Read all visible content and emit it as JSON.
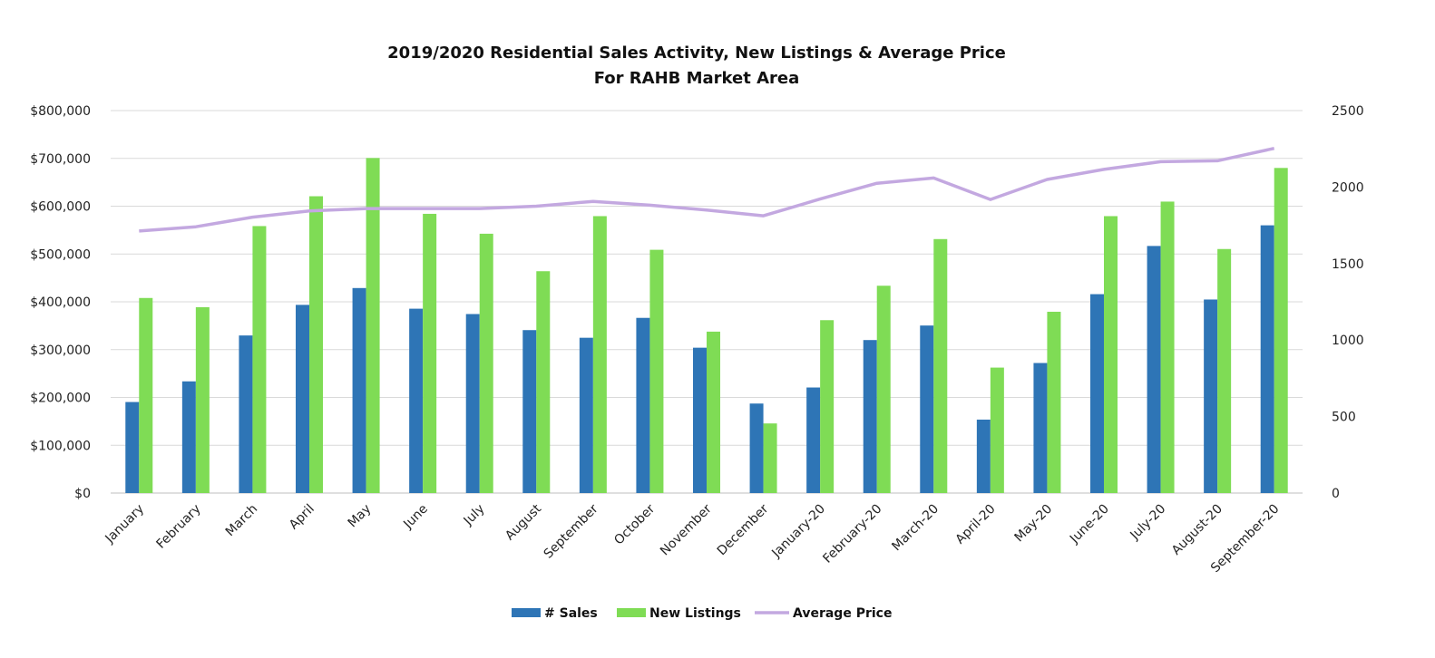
{
  "chart_data": {
    "type": "bar",
    "title": "2019/2020 Residential Sales Activity, New Listings & Average Price",
    "subtitle": "For RAHB Market Area",
    "categories": [
      "January",
      "February",
      "March",
      "April",
      "May",
      "June",
      "July",
      "August",
      "September",
      "October",
      "November",
      "December",
      "January-20",
      "February-20",
      "March-20",
      "April-20",
      "May-20",
      "June-20",
      "July-20",
      "August-20",
      "September-20"
    ],
    "series": [
      {
        "name": "# Sales",
        "type": "bar",
        "axis": "right",
        "color": "#2e75b6",
        "values": [
          595,
          730,
          1030,
          1230,
          1340,
          1205,
          1170,
          1065,
          1015,
          1145,
          950,
          585,
          690,
          1000,
          1095,
          480,
          850,
          1300,
          1615,
          1265,
          1750
        ]
      },
      {
        "name": "New Listings",
        "type": "bar",
        "axis": "right",
        "color": "#7fdc55",
        "values": [
          1275,
          1215,
          1745,
          1940,
          2190,
          1825,
          1695,
          1450,
          1810,
          1590,
          1055,
          455,
          1130,
          1355,
          1660,
          820,
          1185,
          1810,
          1905,
          1595,
          2125
        ]
      },
      {
        "name": "Average Price",
        "type": "line",
        "axis": "left",
        "color": "#c3a8e0",
        "values": [
          548000,
          557000,
          577000,
          590000,
          595000,
          595000,
          595000,
          600000,
          610000,
          602000,
          592000,
          580000,
          615000,
          648000,
          659000,
          614000,
          656000,
          677000,
          693000,
          695000,
          721000
        ]
      }
    ],
    "y_left": {
      "min": 0,
      "max": 800000,
      "ticks": [
        "$0",
        "$100,000",
        "$200,000",
        "$300,000",
        "$400,000",
        "$500,000",
        "$600,000",
        "$700,000",
        "$800,000"
      ]
    },
    "y_right": {
      "min": 0,
      "max": 2500,
      "ticks": [
        "0",
        "500",
        "1000",
        "1500",
        "2000",
        "2500"
      ]
    },
    "grid": true,
    "legend_position": "bottom"
  }
}
